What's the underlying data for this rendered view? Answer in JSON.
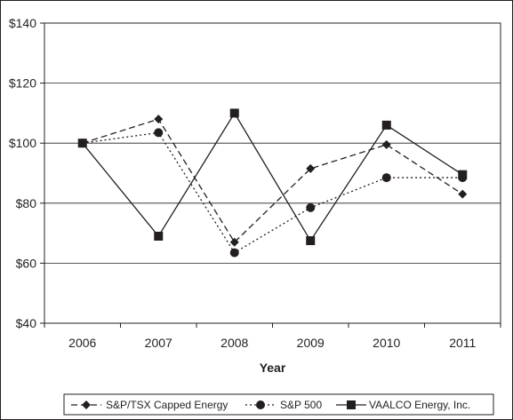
{
  "chart_data": {
    "type": "line",
    "title": "",
    "xlabel": "Year",
    "ylabel": "",
    "categories": [
      "2006",
      "2007",
      "2008",
      "2009",
      "2010",
      "2011"
    ],
    "ylim": [
      40,
      140
    ],
    "yticks": [
      40,
      60,
      80,
      100,
      120,
      140
    ],
    "ytick_labels": [
      "$40",
      "$60",
      "$80",
      "$100",
      "$120",
      "$140"
    ],
    "grid": "horizontal",
    "legend_position": "bottom",
    "series": [
      {
        "name": "S&P/TSX Capped Energy",
        "values": [
          100,
          108,
          67,
          91.5,
          99.5,
          83
        ],
        "line": "dashed",
        "marker": "diamond",
        "color": "#231f20"
      },
      {
        "name": "S&P 500",
        "values": [
          100,
          103.5,
          63.5,
          78.5,
          88.5,
          88.5
        ],
        "line": "dotted",
        "marker": "circle",
        "color": "#231f20"
      },
      {
        "name": "VAALCO Energy, Inc.",
        "values": [
          100,
          69,
          110,
          67.5,
          106,
          89.5
        ],
        "line": "solid",
        "marker": "square",
        "color": "#231f20"
      }
    ]
  }
}
